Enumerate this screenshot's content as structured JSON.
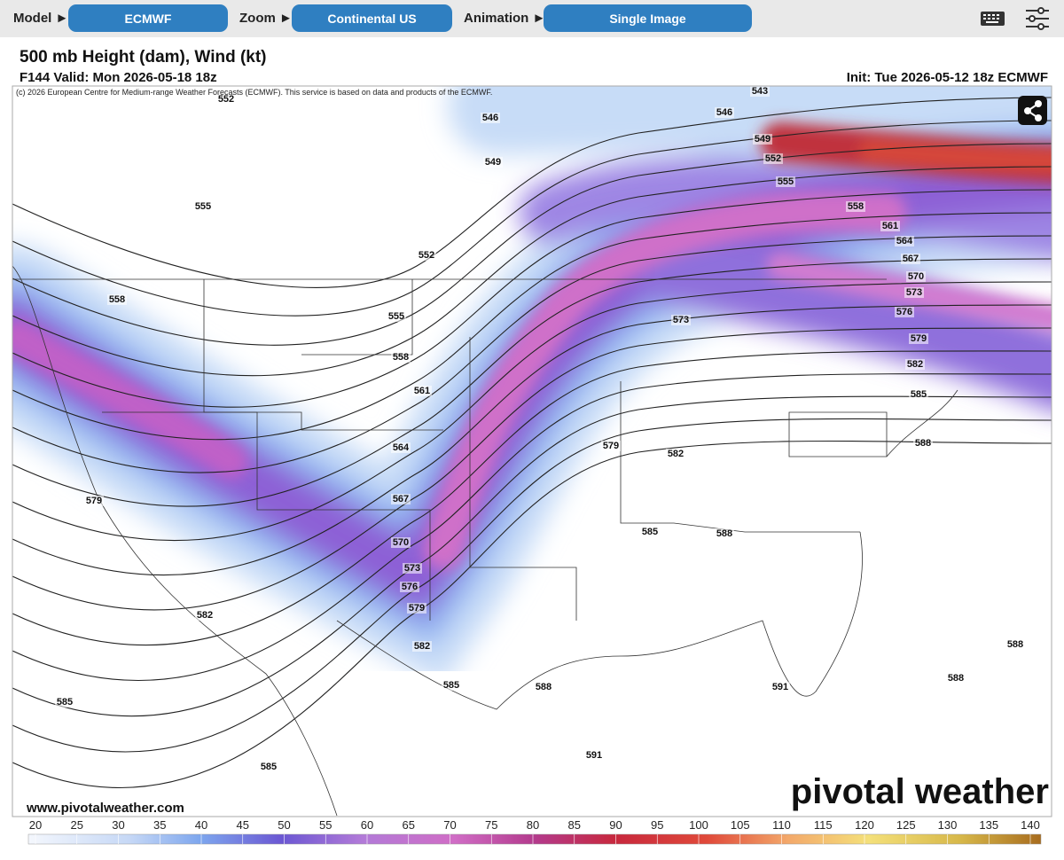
{
  "toolbar": {
    "model_label": "Model ►",
    "model": "ECMWF",
    "zoom_label": "Zoom ►",
    "zoom": "Continental US",
    "animation_label": "Animation ►",
    "animation": "Single Image"
  },
  "map": {
    "title": "500 mb Height (dam), Wind (kt)",
    "subtitle": "F144 Valid: Mon 2026-05-18 18z",
    "init": "Init: Tue 2026-05-12 18z ECMWF",
    "copyright": "(c) 2026 European Centre for Medium-range Weather Forecasts (ECMWF). This service is based on data and products of the ECMWF.",
    "contour_labels": [
      543,
      546,
      549,
      552,
      555,
      558,
      561,
      564,
      567,
      570,
      573,
      576,
      579,
      582,
      585,
      588,
      546,
      549,
      552,
      555,
      555,
      558,
      558,
      561,
      564,
      567,
      570,
      573,
      576,
      579,
      582,
      585,
      588,
      579,
      582,
      585,
      585,
      579,
      582,
      573,
      585,
      588,
      591,
      591,
      588,
      588,
      552
    ],
    "website": "www.pivotalweather.com",
    "watermark": "pivotal weather"
  },
  "colorbar": {
    "ticks": [
      20,
      25,
      30,
      35,
      40,
      45,
      50,
      55,
      60,
      65,
      70,
      75,
      80,
      85,
      90,
      95,
      100,
      105,
      110,
      115,
      120,
      125,
      130,
      135,
      140
    ]
  }
}
